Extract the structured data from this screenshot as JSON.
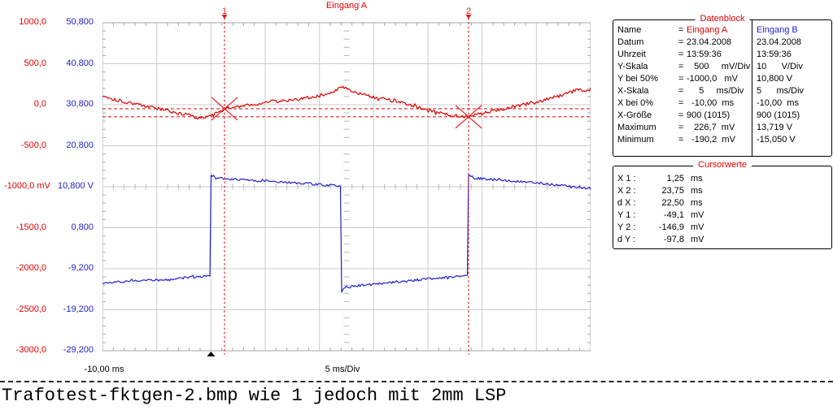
{
  "page": {
    "caption": "Trafotest-fktgen-2.bmp wie 1 jedoch mit 2mm LSP"
  },
  "chart_data": {
    "type": "line",
    "title": "Eingang A",
    "grid": true,
    "x_axis": {
      "unit": "ms",
      "min": -10,
      "max": 35,
      "per_div": 5,
      "label_left": "-10,00 ms",
      "label_center": "5 ms/Div"
    },
    "y_axes": [
      {
        "id": "a",
        "name": "Eingang A",
        "unit": "mV",
        "min": -3000,
        "max": 1000,
        "per_div": 500,
        "color": "#dd0000",
        "ticks": [
          "1000,0",
          "500,0",
          "0,0",
          "-500,0",
          "-1000,0 mV",
          "-1500,0",
          "-2000,0",
          "-2500,0",
          "-3000,0"
        ]
      },
      {
        "id": "b",
        "name": "Eingang B",
        "unit": "V",
        "min": -29.2,
        "max": 50.8,
        "per_div": 10,
        "color": "#2222cc",
        "ticks": [
          "50,800",
          "40,800",
          "30,800",
          "20,800",
          "10,800 V",
          "0,800",
          "-9,200",
          "-19,200",
          "-29,200"
        ]
      }
    ],
    "series": [
      {
        "name": "Eingang A",
        "axis": "a",
        "color": "#dd0000",
        "noise": 20,
        "seed": 101,
        "points": [
          [
            -10,
            110
          ],
          [
            -9,
            70
          ],
          [
            -8,
            40
          ],
          [
            -7,
            10
          ],
          [
            -6,
            -15
          ],
          [
            -5,
            -45
          ],
          [
            -4,
            -75
          ],
          [
            -3,
            -105
          ],
          [
            -2,
            -130
          ],
          [
            -1.3,
            -158
          ],
          [
            -0.6,
            -150
          ],
          [
            0,
            -138
          ],
          [
            0.8,
            -85
          ],
          [
            1.25,
            -52
          ],
          [
            2,
            -30
          ],
          [
            3,
            -8
          ],
          [
            4,
            8
          ],
          [
            5,
            18
          ],
          [
            5.8,
            45
          ],
          [
            6.5,
            40
          ],
          [
            7.5,
            62
          ],
          [
            8.5,
            80
          ],
          [
            9.5,
            95
          ],
          [
            10.5,
            130
          ],
          [
            11.3,
            170
          ],
          [
            12,
            210
          ],
          [
            12.4,
            215
          ],
          [
            12.8,
            178
          ],
          [
            13.6,
            142
          ],
          [
            14.6,
            105
          ],
          [
            15.6,
            78
          ],
          [
            16.6,
            52
          ],
          [
            17.6,
            28
          ],
          [
            18.4,
            2
          ],
          [
            19.2,
            -35
          ],
          [
            20,
            -70
          ],
          [
            21,
            -100
          ],
          [
            22,
            -128
          ],
          [
            23,
            -148
          ],
          [
            23.75,
            -145
          ],
          [
            24.5,
            -122
          ],
          [
            25.5,
            -92
          ],
          [
            26.5,
            -62
          ],
          [
            27.5,
            -35
          ],
          [
            28.5,
            -8
          ],
          [
            29.5,
            20
          ],
          [
            30.5,
            50
          ],
          [
            31.5,
            85
          ],
          [
            32.5,
            120
          ],
          [
            33.3,
            158
          ],
          [
            33.9,
            192
          ],
          [
            34.4,
            170
          ],
          [
            35,
            182
          ]
        ]
      },
      {
        "name": "Eingang B",
        "axis": "b",
        "color": "#2222cc",
        "noise": 0.28,
        "seed": 202,
        "points": [
          [
            -10,
            -12.6
          ],
          [
            -7,
            -12.25
          ],
          [
            -4,
            -11.8
          ],
          [
            -1,
            -11.1
          ],
          [
            -0.02,
            -10.95
          ],
          [
            0,
            13.2
          ],
          [
            0.15,
            13.6
          ],
          [
            0.5,
            12.85
          ],
          [
            2,
            12.65
          ],
          [
            4,
            12.35
          ],
          [
            6,
            12.05
          ],
          [
            8,
            11.7
          ],
          [
            10,
            11.35
          ],
          [
            11.96,
            11.0
          ],
          [
            12,
            -14.9
          ],
          [
            12.3,
            -13.7
          ],
          [
            13,
            -13.45
          ],
          [
            15,
            -12.95
          ],
          [
            17,
            -12.45
          ],
          [
            19,
            -11.95
          ],
          [
            21,
            -11.45
          ],
          [
            23.73,
            -10.75
          ],
          [
            23.75,
            13.3
          ],
          [
            23.9,
            13.65
          ],
          [
            24.3,
            12.9
          ],
          [
            26,
            12.55
          ],
          [
            28,
            12.15
          ],
          [
            30,
            11.7
          ],
          [
            32,
            11.2
          ],
          [
            34,
            10.65
          ],
          [
            35,
            10.35
          ]
        ]
      }
    ],
    "cursors": {
      "label1": "1",
      "label2": "2",
      "x1_ms": 1.25,
      "x2_ms": 23.75,
      "y1_mV": -49.1,
      "y2_mV": -146.9,
      "color": "#e02020"
    },
    "trigger_ms": 0
  },
  "datenblock": {
    "title": "Datenblock",
    "rows": [
      {
        "label": "Name",
        "eq": "=",
        "a": "Eingang A",
        "b": "Eingang B",
        "a_color": "#dd0000",
        "b_color": "#2222cc"
      },
      {
        "label": "Datum",
        "eq": "=",
        "a": "23.04.2008",
        "b": "23.04.2008"
      },
      {
        "label": "Uhrzeit",
        "eq": "=",
        "a": "13:59:36",
        "b": "13:59:36"
      },
      {
        "label": "Y-Skala",
        "eq": "=",
        "a": "   500     mV/Div",
        "b": "10      V/Div"
      },
      {
        "label": "Y bei 50%",
        "eq": "=",
        "a": "-1000,0   mV",
        "b": "10,800 V"
      },
      {
        "label": "X-Skala",
        "eq": "=",
        "a": "     5     ms/Div",
        "b": "5      ms/Div"
      },
      {
        "label": "X bei 0%",
        "eq": "=",
        "a": "  -10,00  ms",
        "b": "-10,00  ms"
      },
      {
        "label": "X-Größe",
        "eq": "=",
        "a": "900 (1015)",
        "b": "900 (1015)"
      },
      {
        "label": "Maximum",
        "eq": "=",
        "a": "   226,7  mV",
        "b": "13,719 V"
      },
      {
        "label": "Minimum",
        "eq": "=",
        "a": "  -190,2  mV",
        "b": "-15,050 V"
      }
    ]
  },
  "cursorwerte": {
    "title": "Cursorwerte",
    "rows": [
      {
        "label": "X 1 :",
        "value": "1,25",
        "unit": "ms"
      },
      {
        "label": "X 2 :",
        "value": "23,75",
        "unit": "ms"
      },
      {
        "label": "d X :",
        "value": "22,50",
        "unit": "ms"
      },
      {
        "label": "Y 1 :",
        "value": "-49,1",
        "unit": "mV"
      },
      {
        "label": "Y 2 :",
        "value": "-146,9",
        "unit": "mV"
      },
      {
        "label": "d Y :",
        "value": "-97,8",
        "unit": "mV"
      }
    ]
  }
}
